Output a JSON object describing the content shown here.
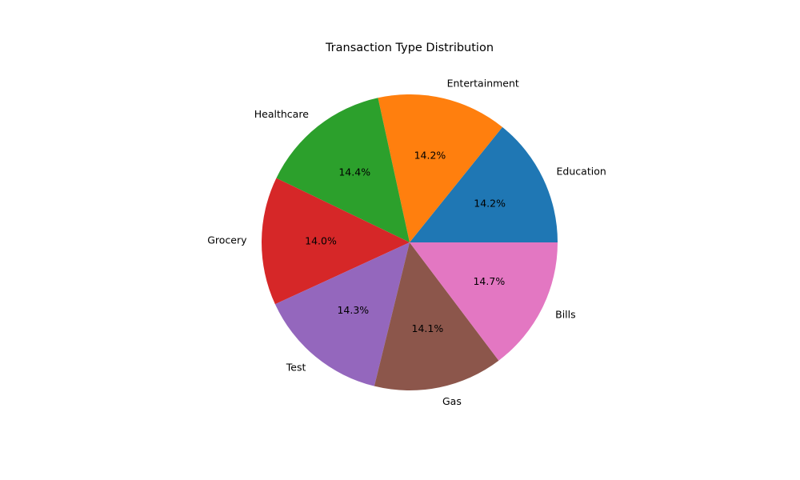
{
  "chart_data": {
    "type": "pie",
    "title": "Transaction Type Distribution",
    "categories": [
      "Education",
      "Entertainment",
      "Healthcare",
      "Grocery",
      "Test",
      "Gas",
      "Bills"
    ],
    "values": [
      14.2,
      14.2,
      14.4,
      14.0,
      14.3,
      14.1,
      14.7
    ],
    "value_labels": [
      "14.2%",
      "14.2%",
      "14.4%",
      "14.0%",
      "14.3%",
      "14.1%",
      "14.7%"
    ],
    "colors": [
      "#1f77b4",
      "#ff7f0e",
      "#2ca02c",
      "#d62728",
      "#9467bd",
      "#8c564b",
      "#e377c2"
    ],
    "start_angle_deg": 0,
    "direction": "counterclockwise",
    "legend": "none"
  }
}
